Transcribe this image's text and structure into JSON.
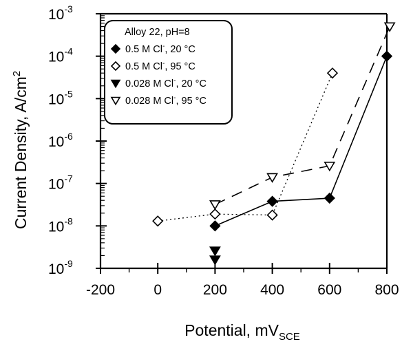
{
  "chart_data": {
    "type": "scatter",
    "xlabel": "Potential, mV",
    "xlabel_sub": "SCE",
    "ylabel": "Current Density, A/cm",
    "ylabel_sup": "2",
    "xlim": [
      -200,
      800
    ],
    "ylim_exponent": [
      -9,
      -3
    ],
    "y_scale": "log",
    "x_ticks": [
      {
        "value": -200,
        "label": "-200"
      },
      {
        "value": 0,
        "label": "0"
      },
      {
        "value": 200,
        "label": "200"
      },
      {
        "value": 400,
        "label": "400"
      },
      {
        "value": 600,
        "label": "600"
      },
      {
        "value": 800,
        "label": "800"
      }
    ],
    "y_ticks": [
      {
        "exp": -9,
        "base": "10",
        "sup": "-9"
      },
      {
        "exp": -8,
        "base": "10",
        "sup": "-8"
      },
      {
        "exp": -7,
        "base": "10",
        "sup": "-7"
      },
      {
        "exp": -6,
        "base": "10",
        "sup": "-6"
      },
      {
        "exp": -5,
        "base": "10",
        "sup": "-5"
      },
      {
        "exp": -4,
        "base": "10",
        "sup": "-4"
      },
      {
        "exp": -3,
        "base": "10",
        "sup": "-3"
      }
    ],
    "legend": {
      "title": "Alloy 22, pH=8",
      "placement": "top-left"
    },
    "series": [
      {
        "name_main": "0.5 M Cl",
        "name_sup": "-",
        "name_tail": ", 20 °C",
        "marker": "diamond",
        "filled": true,
        "line": "solid",
        "points": [
          [
            200,
            1e-08
          ],
          [
            400,
            3.8e-08
          ],
          [
            600,
            4.5e-08
          ],
          [
            800,
            0.0001
          ]
        ]
      },
      {
        "name_main": "0.5 M Cl",
        "name_sup": "-",
        "name_tail": ", 95 °C",
        "marker": "diamond",
        "filled": false,
        "line": "dotted",
        "points": [
          [
            0,
            1.3e-08
          ],
          [
            200,
            1.9e-08
          ],
          [
            400,
            1.8e-08
          ],
          [
            610,
            4e-05
          ]
        ]
      },
      {
        "name_main": "0.028 M Cl",
        "name_sup": "-",
        "name_tail": ", 20 °C",
        "marker": "triangle-down",
        "filled": true,
        "line": "none",
        "points": [
          [
            200,
            1.6e-09
          ],
          [
            200,
            2.6e-09
          ]
        ]
      },
      {
        "name_main": "0.028 M Cl",
        "name_sup": "-",
        "name_tail": ", 95 °C",
        "marker": "triangle-down",
        "filled": false,
        "line": "dashed",
        "points": [
          [
            200,
            3.2e-08
          ],
          [
            400,
            1.4e-07
          ],
          [
            600,
            2.6e-07
          ],
          [
            810,
            0.0005
          ]
        ]
      }
    ]
  }
}
